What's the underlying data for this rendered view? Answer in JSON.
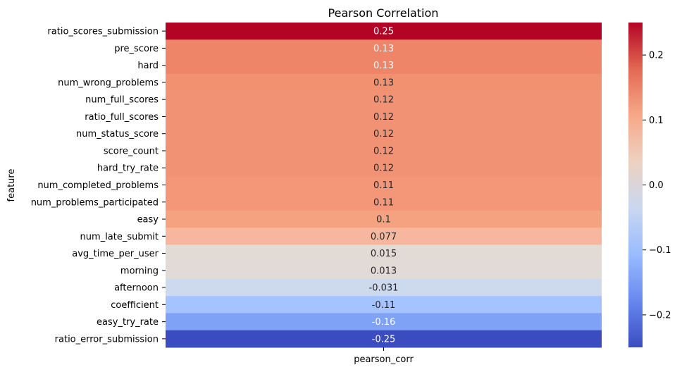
{
  "chart_data": {
    "type": "heatmap",
    "title": "Pearson Correlation",
    "xlabel": "",
    "ylabel": "feature",
    "x_categories": [
      "pearson_corr"
    ],
    "y_categories": [
      "ratio_scores_submission",
      "pre_score",
      "hard",
      "num_wrong_problems",
      "num_full_scores",
      "ratio_full_scores",
      "num_status_score",
      "score_count",
      "hard_try_rate",
      "num_completed_problems",
      "num_problems_participated",
      "easy",
      "num_late_submit",
      "avg_time_per_user",
      "morning",
      "afternoon",
      "coefficient",
      "easy_try_rate",
      "ratio_error_submission"
    ],
    "values": [
      0.25,
      0.13,
      0.13,
      0.13,
      0.12,
      0.12,
      0.12,
      0.12,
      0.12,
      0.11,
      0.11,
      0.1,
      0.077,
      0.015,
      0.013,
      -0.031,
      -0.11,
      -0.16,
      -0.25
    ],
    "value_labels": [
      "0.25",
      "0.13",
      "0.13",
      "0.13",
      "0.12",
      "0.12",
      "0.12",
      "0.12",
      "0.12",
      "0.11",
      "0.11",
      "0.1",
      "0.077",
      "0.015",
      "0.013",
      "-0.031",
      "-0.11",
      "-0.16",
      "-0.25"
    ],
    "cell_colors": [
      "#b40426",
      "#ee8468",
      "#ee8468",
      "#f2916f",
      "#f29274",
      "#f29274",
      "#f29274",
      "#f29274",
      "#f29274",
      "#f39778",
      "#f39778",
      "#f4a27f",
      "#f6b79e",
      "#e2dad5",
      "#e1dad6",
      "#cdd9ec",
      "#a5c3fe",
      "#7fa2f7",
      "#3b4cc0"
    ],
    "label_colors": [
      "#ffffff",
      "#ffffff",
      "#ffffff",
      "#262626",
      "#262626",
      "#262626",
      "#262626",
      "#262626",
      "#262626",
      "#262626",
      "#262626",
      "#262626",
      "#262626",
      "#262626",
      "#262626",
      "#262626",
      "#262626",
      "#ffffff",
      "#ffffff"
    ],
    "colorbar": {
      "colormap": "coolwarm",
      "vmin": -0.25,
      "vmax": 0.25,
      "ticks": [
        0.2,
        0.1,
        0.0,
        -0.1,
        -0.2
      ],
      "tick_labels": [
        "0.2",
        "0.1",
        "0.0",
        "−0.1",
        "−0.2"
      ],
      "gradient_stops": [
        "#3b4cc0",
        "#6788ee",
        "#9abbff",
        "#c9d7f0",
        "#edd1c2",
        "#f7a889",
        "#e26952",
        "#b40426"
      ]
    },
    "grid": false,
    "legend": "colorbar-right"
  }
}
